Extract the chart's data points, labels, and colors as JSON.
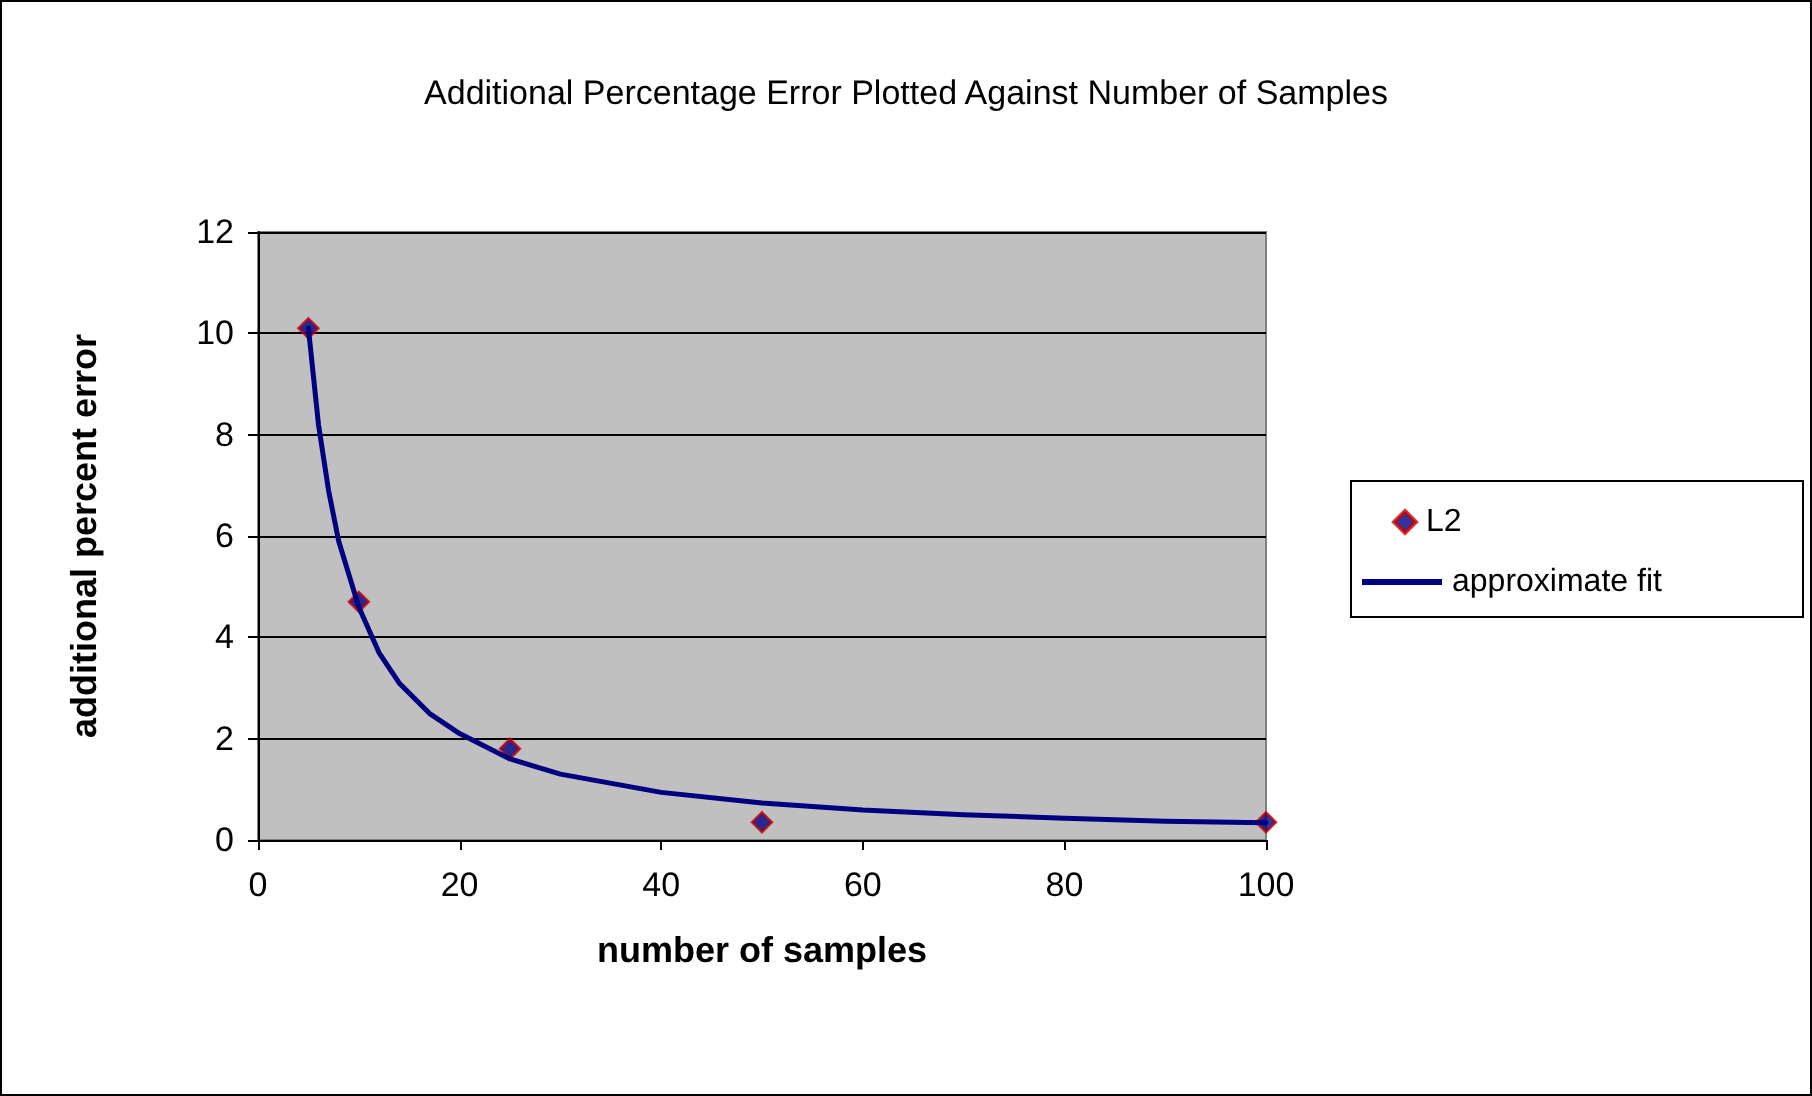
{
  "chart_data": {
    "type": "scatter",
    "title": "Additional Percentage Error Plotted Against Number of Samples",
    "xlabel": "number of samples",
    "ylabel": "additional percent error",
    "xlim": [
      0,
      100
    ],
    "xticks": [
      0,
      20,
      40,
      60,
      80,
      100
    ],
    "ylim": [
      0,
      12
    ],
    "yticks": [
      0,
      2,
      4,
      6,
      8,
      10,
      12
    ],
    "grid": "y",
    "legend": "right",
    "series": [
      {
        "name": "L2",
        "marker": "diamond",
        "color": "#000080",
        "x": [
          5,
          10,
          25,
          50,
          100
        ],
        "values": [
          10.1,
          4.7,
          1.8,
          0.35,
          0.35
        ]
      },
      {
        "name": "approximate fit",
        "type": "line",
        "marker": "none",
        "line_style": "solid",
        "color": "#000080",
        "x": [
          5,
          6,
          7,
          8,
          10,
          12,
          14,
          17,
          20,
          25,
          30,
          40,
          50,
          60,
          70,
          80,
          90,
          100
        ],
        "values": [
          10.1,
          8.2,
          6.9,
          5.9,
          4.6,
          3.7,
          3.1,
          2.5,
          2.1,
          1.6,
          1.3,
          0.94,
          0.73,
          0.59,
          0.5,
          0.43,
          0.37,
          0.34
        ]
      }
    ]
  }
}
